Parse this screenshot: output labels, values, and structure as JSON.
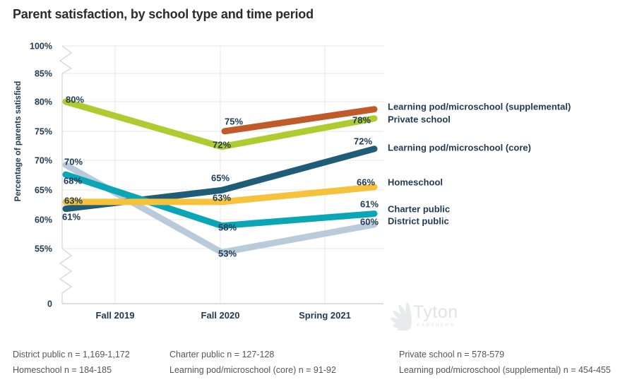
{
  "title": "Parent satisfaction, by school type and time period",
  "y_axis_title": "Percentage of parents satisfied",
  "colors": {
    "label_text": "#1f3a52",
    "grid": "#e7e7e7",
    "axis": "#d9d9d9",
    "bottom_axis": "#d4d4d4",
    "watermark": "#e9eaec"
  },
  "watermark": {
    "name": "Tyton",
    "sub": "PARTNERS"
  },
  "footnotes": {
    "col1": [
      "District public n = 1,169-1,172",
      "Homeschool n = 184-185"
    ],
    "col2": [
      "Charter public n = 127-128",
      "Learning pod/microschool (core) n = 91-92"
    ],
    "col3": [
      "Private school n = 578-579",
      "Learning pod/microschool (supplemental) n = 454-455"
    ]
  },
  "chart_data": {
    "type": "line",
    "title": "Parent satisfaction, by school type and time period",
    "categories": [
      "Fall 2019",
      "Fall 2020",
      "Spring 2021"
    ],
    "xlabel": "",
    "ylabel": "Percentage of parents satisfied",
    "grid": true,
    "data_labels": true,
    "legend_position": "right of line ends",
    "y_axis": {
      "ticks": [
        {
          "label": "100%",
          "value": 100
        },
        {
          "label": "85%",
          "value": 85
        },
        {
          "label": "80%",
          "value": 80
        },
        {
          "label": "75%",
          "value": 75
        },
        {
          "label": "70%",
          "value": 70
        },
        {
          "label": "65%",
          "value": 65
        },
        {
          "label": "60%",
          "value": 60
        },
        {
          "label": "55%",
          "value": 55
        },
        {
          "label": "0",
          "value": 0
        }
      ],
      "axis_breaks": [
        [
          85,
          100
        ],
        [
          0,
          55
        ]
      ]
    },
    "series": [
      {
        "name": "Learning pod/microschool (supplemental)",
        "color": "#c05a28",
        "values": [
          null,
          75,
          78
        ]
      },
      {
        "name": "Private school",
        "color": "#aecb2f",
        "values": [
          80,
          72,
          78
        ]
      },
      {
        "name": "Learning pod/microschool (core)",
        "color": "#1f5c78",
        "values": [
          61,
          65,
          72
        ]
      },
      {
        "name": "Homeschool",
        "color": "#f6c13b",
        "values": [
          63,
          63,
          66
        ]
      },
      {
        "name": "Charter public",
        "color": "#0aa6b5",
        "values": [
          68,
          58,
          61
        ]
      },
      {
        "name": "District public",
        "color": "#b9cbdb",
        "values": [
          70,
          53,
          60
        ]
      }
    ]
  }
}
